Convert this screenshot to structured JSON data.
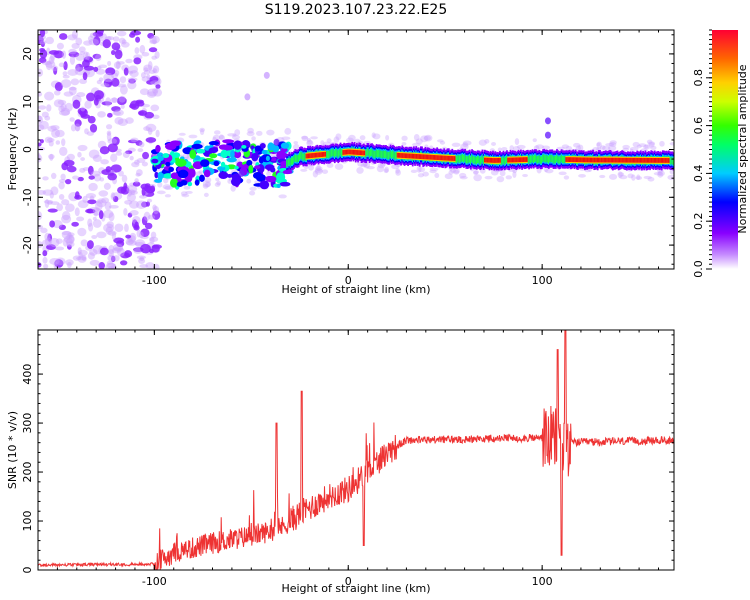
{
  "title": "S119.2023.107.23.22.E25",
  "colors": {
    "snr_line": "#ee3333",
    "spectrogram_sparse": "#9a33ff",
    "spectrogram_ridge": "#dd2222",
    "axes": "#000000",
    "background": "#ffffff"
  },
  "chart_data": [
    {
      "type": "heatmap",
      "name": "spectrogram",
      "xlabel": "Height of straight line (km)",
      "ylabel": "Frequency (Hz)",
      "xlim": [
        -160,
        168
      ],
      "ylim": [
        -25,
        25
      ],
      "xticks": [
        -100,
        0,
        100
      ],
      "xtick_labels": [
        "-100",
        "0",
        "100"
      ],
      "yticks": [
        -20,
        -10,
        0,
        10,
        20
      ],
      "ytick_labels": [
        "-20",
        "-10",
        "0",
        "10",
        "20"
      ],
      "grid": false,
      "colorbar": {
        "label": "Normalized spectral amplitude",
        "colormap": "hsv-like (purple-blue-cyan-green-yellow-orange-red)",
        "range": [
          0.0,
          1.0
        ],
        "ticks": [
          0.0,
          0.2,
          0.4,
          0.6,
          0.8
        ],
        "tick_labels": [
          "0.0",
          "0.2",
          "0.4",
          "0.6",
          "0.8"
        ]
      },
      "ridge_frequency_hz": [
        {
          "x": -100,
          "y": -3.5
        },
        {
          "x": -75,
          "y": -2.5
        },
        {
          "x": -50,
          "y": -3.0
        },
        {
          "x": -35,
          "y": -3.5
        },
        {
          "x": -25,
          "y": -1.5
        },
        {
          "x": 0,
          "y": -0.5
        },
        {
          "x": 25,
          "y": -1.2
        },
        {
          "x": 50,
          "y": -1.8
        },
        {
          "x": 75,
          "y": -2.3
        },
        {
          "x": 100,
          "y": -2.0
        },
        {
          "x": 125,
          "y": -2.2
        },
        {
          "x": 168,
          "y": -2.3
        }
      ]
    },
    {
      "type": "line",
      "name": "snr",
      "xlabel": "Height of straight line (km)",
      "ylabel": "SNR (10 * v/v)",
      "xlim": [
        -160,
        168
      ],
      "ylim": [
        0,
        490
      ],
      "xticks": [
        -100,
        0,
        100
      ],
      "xtick_labels": [
        "-100",
        "0",
        "100"
      ],
      "yticks": [
        0,
        100,
        200,
        300,
        400
      ],
      "ytick_labels": [
        "0",
        "100",
        "200",
        "300",
        "400"
      ],
      "grid": false,
      "trend": [
        {
          "x": -160,
          "y": 10
        },
        {
          "x": -100,
          "y": 12
        },
        {
          "x": -90,
          "y": 35
        },
        {
          "x": -70,
          "y": 55
        },
        {
          "x": -50,
          "y": 70
        },
        {
          "x": -35,
          "y": 85
        },
        {
          "x": -25,
          "y": 115
        },
        {
          "x": -10,
          "y": 150
        },
        {
          "x": 0,
          "y": 165
        },
        {
          "x": 10,
          "y": 200
        },
        {
          "x": 20,
          "y": 240
        },
        {
          "x": 30,
          "y": 265
        },
        {
          "x": 100,
          "y": 270
        },
        {
          "x": 110,
          "y": 260
        },
        {
          "x": 168,
          "y": 265
        }
      ],
      "peaks": [
        {
          "x": -24,
          "y": 365
        },
        {
          "x": -37,
          "y": 300
        },
        {
          "x": 8,
          "y": 260
        },
        {
          "x": 108,
          "y": 450
        },
        {
          "x": 112,
          "y": 490
        }
      ],
      "dips": [
        {
          "x": 110,
          "y": 30
        },
        {
          "x": 8,
          "y": 50
        }
      ]
    }
  ]
}
